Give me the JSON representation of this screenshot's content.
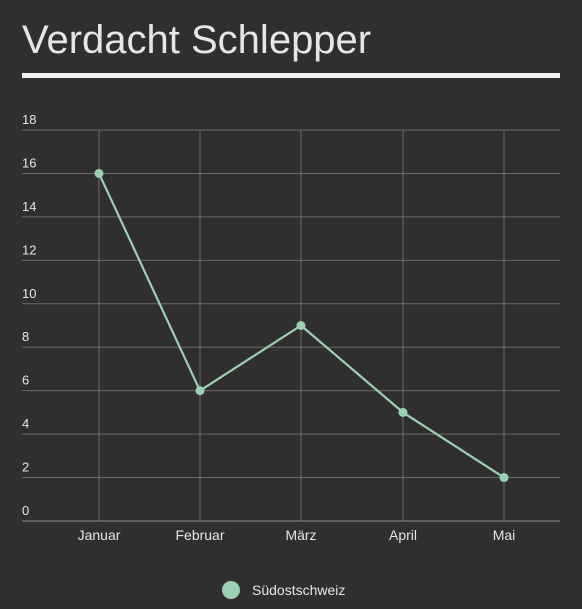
{
  "title": "Verdacht Schlepper",
  "colors": {
    "background": "#2f2f2f",
    "grid": "#6a6a6a",
    "axis": "#8a8a8a",
    "text": "#e6e6e6",
    "series": "#9bd1b2"
  },
  "chart_data": {
    "type": "line",
    "title": "Verdacht Schlepper",
    "xlabel": "",
    "ylabel": "",
    "categories": [
      "Januar",
      "Februar",
      "März",
      "April",
      "Mai"
    ],
    "series": [
      {
        "name": "Südostschweiz",
        "values": [
          16,
          6,
          9,
          5,
          2
        ]
      }
    ],
    "ylim": [
      0,
      18
    ],
    "yticks": [
      0,
      2,
      4,
      6,
      8,
      10,
      12,
      14,
      16,
      18
    ],
    "grid": true,
    "legend": "bottom-center",
    "markers": true
  }
}
